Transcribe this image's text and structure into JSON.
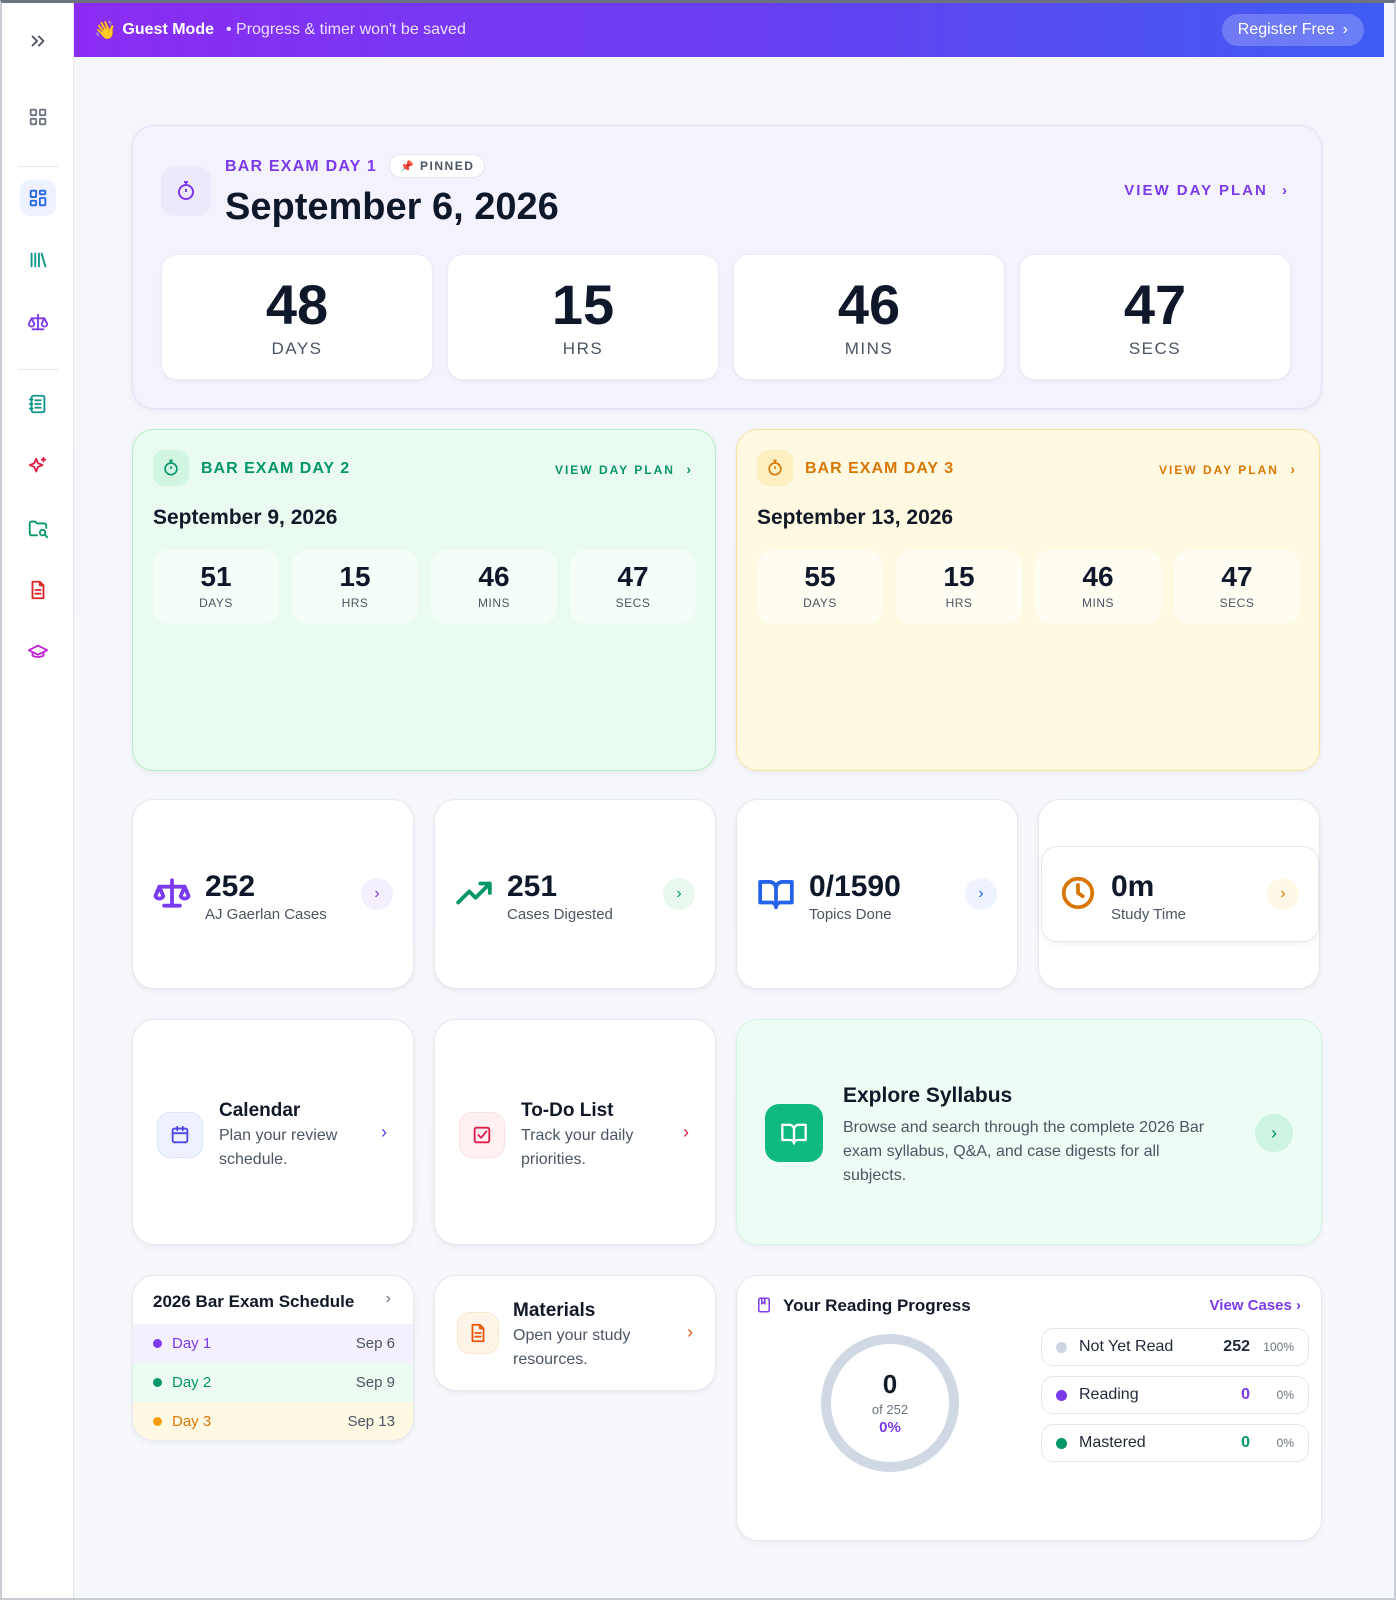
{
  "banner": {
    "wave": "👋",
    "title": "Guest Mode",
    "subtitle": "• Progress & timer won't be saved",
    "register": "Register Free",
    "register_chevron": "›"
  },
  "sidebar": {
    "items": [
      {
        "icon": "chevrons-right-icon"
      },
      {
        "icon": "grid-icon"
      },
      {
        "icon": "dashboard-icon",
        "active": true
      },
      {
        "icon": "library-icon"
      },
      {
        "icon": "scales-icon"
      },
      {
        "icon": "notebook-icon"
      },
      {
        "icon": "sparkles-icon"
      },
      {
        "icon": "folder-search-icon"
      },
      {
        "icon": "document-icon"
      },
      {
        "icon": "graduation-cap-icon"
      }
    ]
  },
  "hero": {
    "label": "BAR EXAM DAY 1",
    "pin_icon": "📌",
    "pinned": "PINNED",
    "date": "September 6, 2026",
    "view_plan": "VIEW DAY PLAN",
    "chevron": "›",
    "timer": [
      {
        "value": "48",
        "unit": "DAYS"
      },
      {
        "value": "15",
        "unit": "HRS"
      },
      {
        "value": "46",
        "unit": "MINS"
      },
      {
        "value": "47",
        "unit": "SECS"
      }
    ]
  },
  "day2": {
    "label": "BAR EXAM DAY 2",
    "view_plan": "VIEW DAY PLAN",
    "chevron": "›",
    "date": "September 9, 2026",
    "timer": [
      {
        "value": "51",
        "unit": "DAYS"
      },
      {
        "value": "15",
        "unit": "HRS"
      },
      {
        "value": "46",
        "unit": "MINS"
      },
      {
        "value": "47",
        "unit": "SECS"
      }
    ]
  },
  "day3": {
    "label": "BAR EXAM DAY 3",
    "view_plan": "VIEW DAY PLAN",
    "chevron": "›",
    "date": "September 13, 2026",
    "timer": [
      {
        "value": "55",
        "unit": "DAYS"
      },
      {
        "value": "15",
        "unit": "HRS"
      },
      {
        "value": "46",
        "unit": "MINS"
      },
      {
        "value": "47",
        "unit": "SECS"
      }
    ]
  },
  "stats": [
    {
      "value": "252",
      "label": "AJ Gaerlan Cases",
      "icon": "scales-icon",
      "color": "#7c3aed"
    },
    {
      "value": "251",
      "label": "Cases Digested",
      "icon": "trending-up-icon",
      "color": "#059669"
    },
    {
      "value": "0/1590",
      "label": "Topics Done",
      "icon": "book-open-icon",
      "color": "#2563eb"
    },
    {
      "value": "0m",
      "label": "Study Time",
      "icon": "clock-icon",
      "color": "#d97706"
    }
  ],
  "stat_chevron": "›",
  "features": {
    "calendar": {
      "title": "Calendar",
      "desc1": "Plan your review",
      "desc2": "schedule."
    },
    "todo": {
      "title": "To-Do List",
      "desc1": "Track your daily",
      "desc2": "priorities."
    },
    "syllabus": {
      "title": "Explore Syllabus",
      "desc1": "Browse and search through the complete 2026 Bar",
      "desc2": "exam syllabus, Q&A, and case digests for all",
      "desc3": "subjects."
    },
    "chevron": "›"
  },
  "schedule": {
    "title": "2026 Bar Exam Schedule",
    "chevron": "›",
    "rows": [
      {
        "day": "Day 1",
        "date": "Sep 6",
        "color": "#7c3aed"
      },
      {
        "day": "Day 2",
        "date": "Sep 9",
        "color": "#059669"
      },
      {
        "day": "Day 3",
        "date": "Sep 13",
        "color": "#d97706"
      }
    ]
  },
  "materials": {
    "title": "Materials",
    "desc1": "Open your study",
    "desc2": "resources.",
    "chevron": "›"
  },
  "reading": {
    "title": "Your Reading Progress",
    "view_cases": "View Cases ›",
    "count": "0",
    "of_total": "of 252",
    "percent": "0%",
    "rows": [
      {
        "label": "Not Yet Read",
        "count": "252",
        "pct": "100%",
        "color": "#cbd5e1"
      },
      {
        "label": "Reading",
        "count": "0",
        "pct": "0%",
        "color": "#7c3aed"
      },
      {
        "label": "Mastered",
        "count": "0",
        "pct": "0%",
        "color": "#059669"
      }
    ]
  }
}
